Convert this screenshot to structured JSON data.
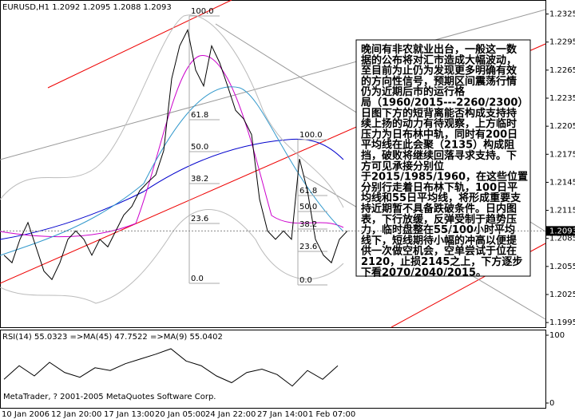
{
  "window": {
    "header": "EURUSD,H1  1.2092 1.2095 1.2088 1.2093",
    "copyright": "MetaTrader, ? 2001-2005 MetaQuotes Software Corp."
  },
  "time_axis": [
    "10 Jan 2006",
    "12 Jan 20:00",
    "17 Jan 13:00",
    "20 Jan 05:00",
    "24 Jan 22:00",
    "27 Jan 14:00",
    "1 Feb 07:00"
  ],
  "fibonacci": [
    [
      "100.0",
      "61.8",
      "50.0",
      "38.2",
      "23.6",
      "0.0"
    ],
    [
      "100.0",
      "61.8",
      "50.0",
      "38.2",
      "23.6",
      "0.0"
    ]
  ],
  "annotation": {
    "lines": [
      "晚间有非农就业出台，一般这一数",
      "据的公布将对汇市造成大幅波动，",
      "至目前为止仍为发现更多明确有效",
      "的方向性信号，预期区间震荡行情",
      "仍为近期后市的运行格",
      "局（1960/2015---2260/2300）",
      "日图下方的短背离能否构成支持持",
      "续上扬的动力有待观察，上方临时",
      "压力为日布林中轨，同时有200日",
      "平均线在此会聚（2135）构成阻",
      "挡，破败将继续回落寻求支持。下",
      "方可见承接分别位",
      "于2015/1985/1960，在这些位置",
      "分别行走着日布林下轨，100日平",
      "均线和55日平均线，将形成重要支",
      "持近期暂不具备跌破条件。日内图",
      "表，下行放缓，反弹受制于趋势压",
      "力，临时盘整在55/100小时平均",
      "线下，短线期待小幅的冲高以便提",
      "供一次做空机会，空单尝试于位在",
      "2120，止损2145之上，下方逐步",
      "下看2070/2040/2015。"
    ]
  },
  "chart_data": [
    {
      "type": "line",
      "color": "#000000",
      "last": 1.2093,
      "values": [
        1.2067,
        1.2059,
        1.2084,
        1.2102,
        1.2076,
        1.205,
        1.2041,
        1.2059,
        1.2084,
        1.2093,
        1.2084,
        1.2067,
        1.2084,
        1.2076,
        1.2093,
        1.211,
        1.2119,
        1.2136,
        1.2145,
        1.2153,
        1.2179,
        1.2256,
        1.2291,
        1.2308,
        1.2265,
        1.2248,
        1.2291,
        1.2273,
        1.2248,
        1.2222,
        1.2213,
        1.2196,
        1.2127,
        1.2093,
        1.2084,
        1.2093,
        1.2084,
        1.217,
        1.2136,
        1.2084,
        1.2067,
        1.2059,
        1.2084,
        1.2093
      ],
      "ylim": [
        1.199,
        1.234
      ],
      "yticks": [
        1.2325,
        1.2295,
        1.2265,
        1.2235,
        1.2205,
        1.2175,
        1.2145,
        1.2115,
        1.2085,
        1.2055,
        1.2025,
        1.1995
      ]
    },
    {
      "type": "line",
      "title": "RSI(14) 55.0323  =>MA(45) 47.7522  =>MA(9) 55.0402",
      "color": "#000000",
      "values": [
        35,
        55,
        40,
        60,
        45,
        38,
        52,
        48,
        58,
        65,
        72,
        80,
        62,
        55,
        40,
        30,
        45,
        50,
        42,
        25,
        48,
        35,
        55
      ],
      "ylim": [
        0,
        100
      ],
      "yticks": [
        0,
        100
      ]
    }
  ]
}
